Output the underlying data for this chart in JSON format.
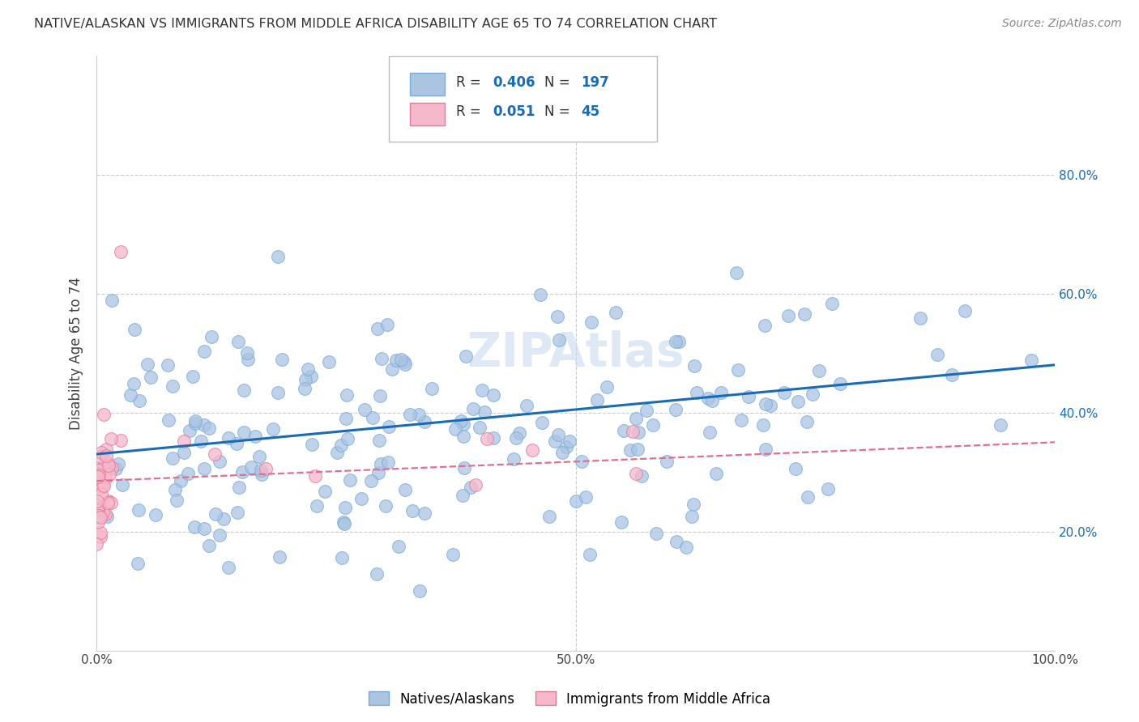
{
  "title": "NATIVE/ALASKAN VS IMMIGRANTS FROM MIDDLE AFRICA DISABILITY AGE 65 TO 74 CORRELATION CHART",
  "source": "Source: ZipAtlas.com",
  "ylabel": "Disability Age 65 to 74",
  "x_min": 0.0,
  "x_max": 1.0,
  "y_min": 0.0,
  "y_max": 1.0,
  "blue_R": 0.406,
  "blue_N": 197,
  "pink_R": 0.051,
  "pink_N": 45,
  "blue_color": "#aac4e2",
  "pink_color": "#f5b8cb",
  "blue_line_color": "#1a6bb5",
  "pink_line_color": "#e07090",
  "grid_color": "#cccccc",
  "legend_label_blue": "Natives/Alaskans",
  "legend_label_pink": "Immigrants from Middle Africa",
  "watermark": "ZIPAtlas",
  "blue_trend_x0": 0.0,
  "blue_trend_y0": 0.33,
  "blue_trend_x1": 1.0,
  "blue_trend_y1": 0.48,
  "pink_trend_x0": 0.0,
  "pink_trend_y0": 0.285,
  "pink_trend_x1": 1.0,
  "pink_trend_y1": 0.35
}
